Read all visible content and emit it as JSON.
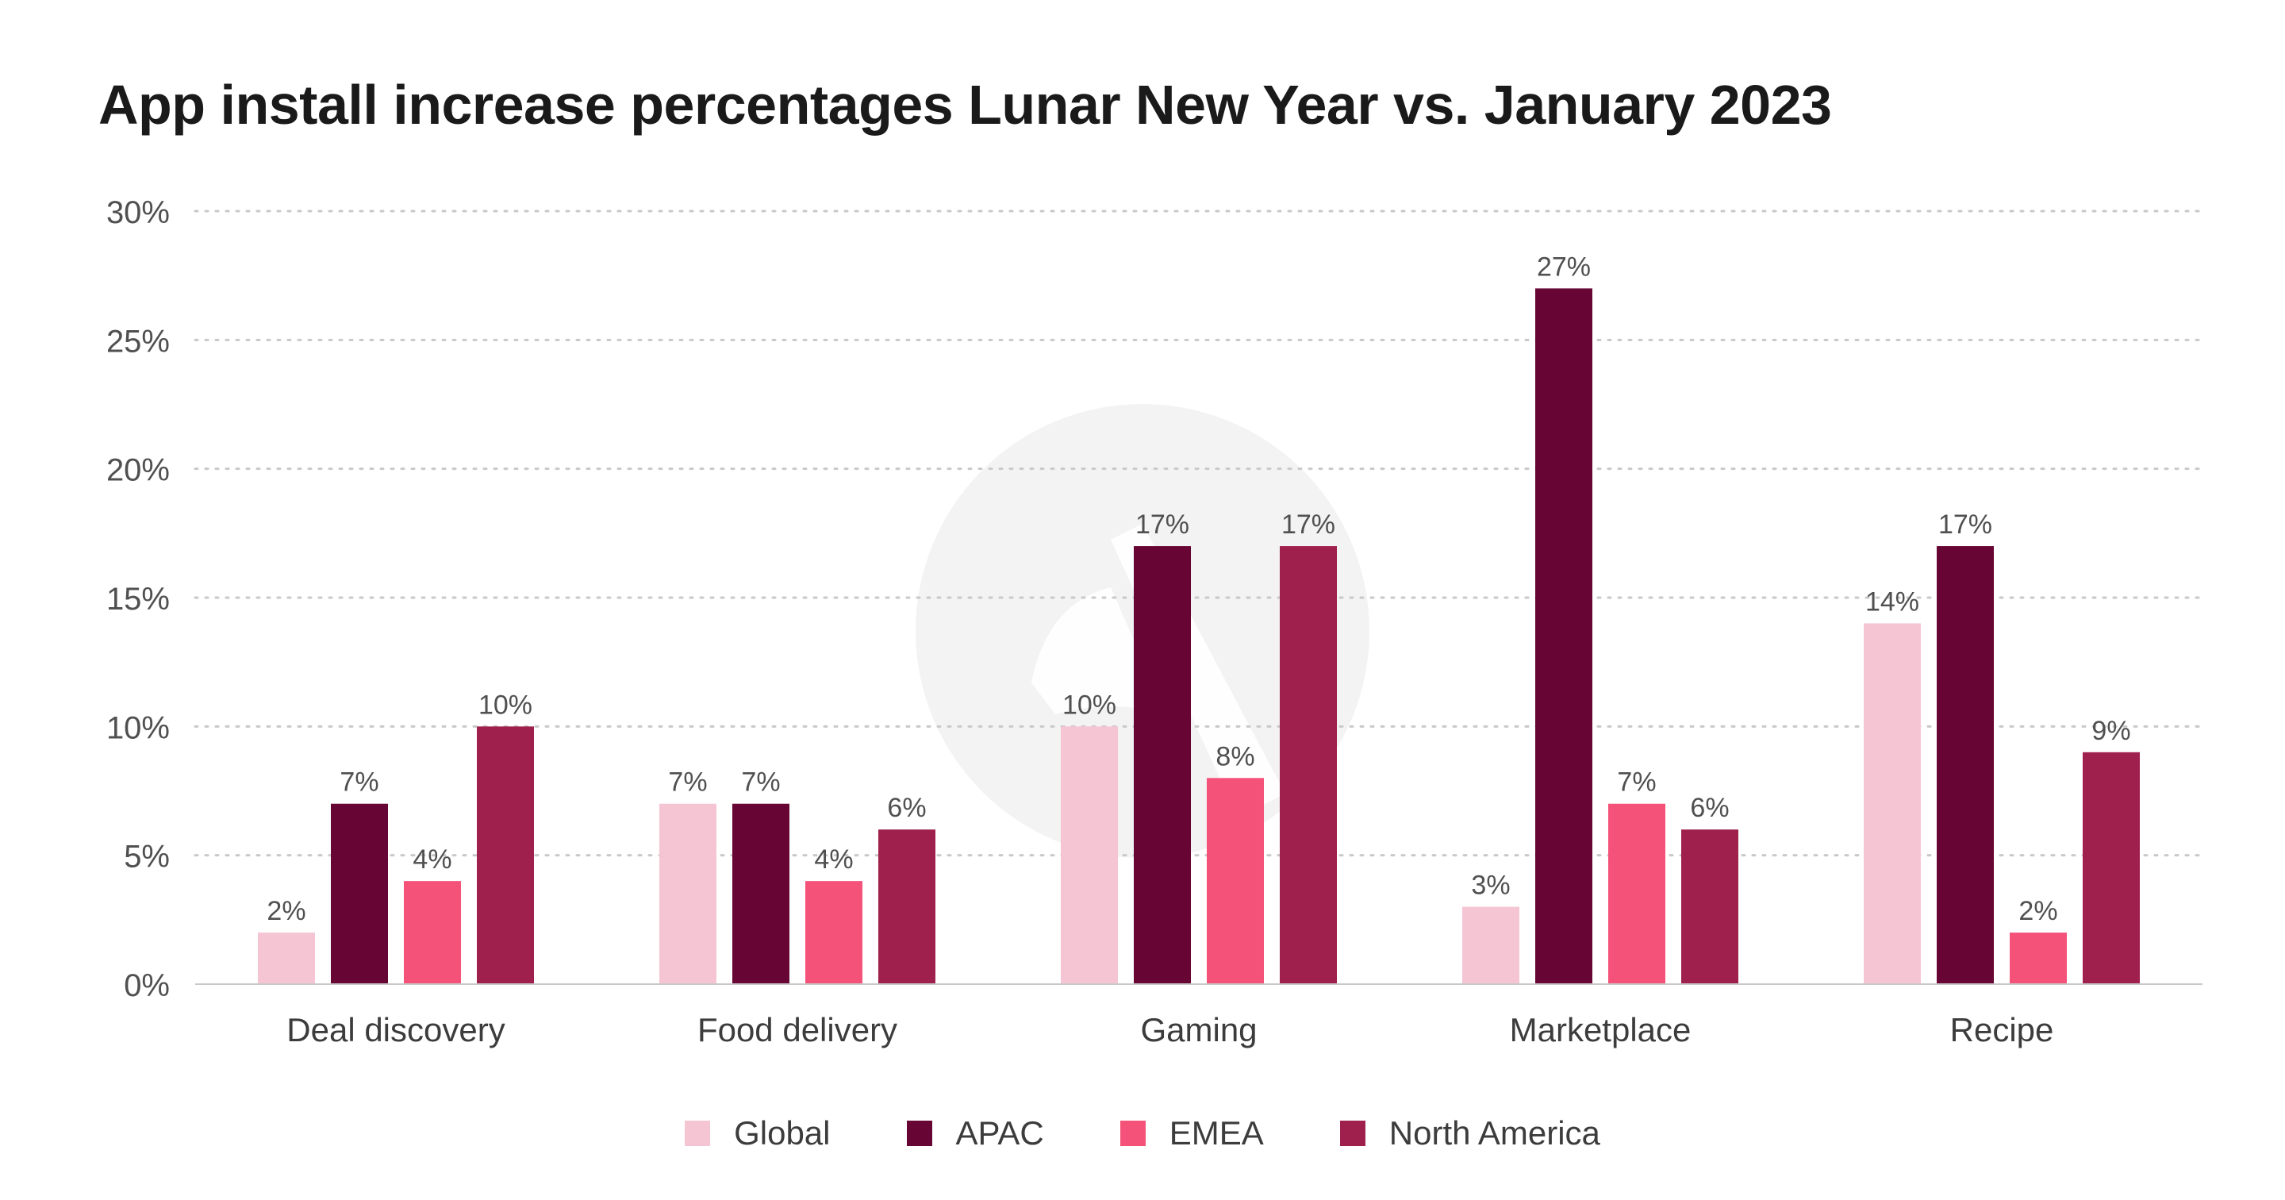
{
  "chart_data": {
    "type": "bar",
    "title": "App install increase percentages Lunar New Year vs. January 2023",
    "categories": [
      "Deal discovery",
      "Food delivery",
      "Gaming",
      "Marketplace",
      "Recipe"
    ],
    "series": [
      {
        "name": "Global",
        "color": "#f5c5d3",
        "values": [
          2,
          7,
          10,
          3,
          14
        ]
      },
      {
        "name": "APAC",
        "color": "#670634",
        "values": [
          7,
          7,
          17,
          27,
          17
        ]
      },
      {
        "name": "EMEA",
        "color": "#f5527a",
        "values": [
          4,
          4,
          8,
          7,
          2
        ]
      },
      {
        "name": "North America",
        "color": "#9f1f4d",
        "values": [
          10,
          6,
          17,
          6,
          9
        ]
      }
    ],
    "value_suffix": "%",
    "ylim": [
      0,
      30
    ],
    "yticks": [
      0,
      5,
      10,
      15,
      20,
      25,
      30
    ],
    "ytick_labels": [
      "0%",
      "5%",
      "10%",
      "15%",
      "20%",
      "25%",
      "30%"
    ],
    "xlabel": "",
    "ylabel": "",
    "grid": "horizontal dotted",
    "legend_position": "bottom"
  }
}
